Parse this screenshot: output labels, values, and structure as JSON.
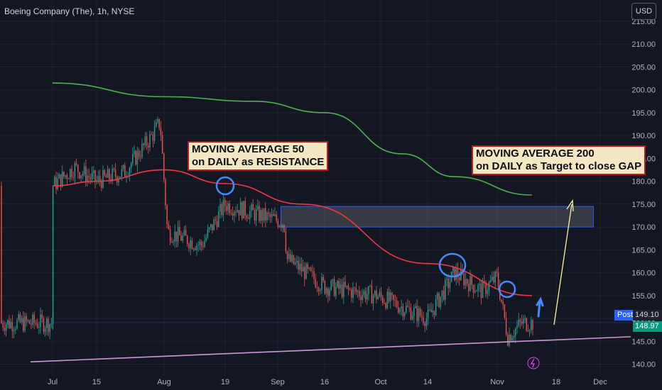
{
  "header": {
    "symbol_title": "Boeing Company (The), 1h, NYSE",
    "currency_button": "USD"
  },
  "annotations": {
    "ma50": {
      "line1": "MOVING AVERAGE 50",
      "line2": "on DAILY as RESISTANCE"
    },
    "ma200": {
      "line1": "MOVING AVERAGE 200",
      "line2": "on DAILY as Target to close GAP"
    }
  },
  "price_labels": {
    "post_tag": "Post",
    "post_price": "149.10",
    "last_price": "148.97"
  },
  "colors": {
    "background": "#131722",
    "up_candle": "#26a69a",
    "down_candle": "#ef5350",
    "ma50_line": "#f23645",
    "ma200_line": "#4caf50",
    "support_line": "#ce93d8",
    "circle": "#448aff",
    "arrow": "#fff59d",
    "gap_box_border": "#2962ff"
  },
  "chart_data": {
    "type": "candlestick",
    "interval": "1h",
    "y_axis": {
      "range": [
        139,
        215
      ],
      "ticks": [
        140,
        145,
        150,
        155,
        160,
        165,
        170,
        175,
        180,
        185,
        190,
        195,
        200,
        205,
        210,
        215
      ]
    },
    "x_axis": {
      "ticks": [
        "Jul",
        "15",
        "Aug",
        "19",
        "Sep",
        "16",
        "Oct",
        "14",
        "Nov",
        "18",
        "Dec"
      ]
    },
    "grid": true,
    "price_path": [
      [
        "Jul",
        179
      ],
      [
        "Jul 8",
        183
      ],
      [
        "Jul 15",
        180
      ],
      [
        "Jul 22",
        182
      ],
      [
        "Jul 29",
        190
      ],
      [
        "Jul 31",
        193
      ],
      [
        "Aug 2",
        169
      ],
      [
        "Aug 12",
        166
      ],
      [
        "Aug 19",
        175
      ],
      [
        "Aug 26",
        173
      ],
      [
        "Sep 3",
        171
      ],
      [
        "Sep 4",
        163
      ],
      [
        "Sep 16",
        157
      ],
      [
        "Sep 30",
        155
      ],
      [
        "Oct 14",
        150
      ],
      [
        "Oct 21",
        160
      ],
      [
        "Oct 28",
        156
      ],
      [
        "Nov 1",
        159
      ],
      [
        "Nov 4",
        146
      ],
      [
        "Nov 8",
        149
      ]
    ],
    "ma200_daily": [
      [
        "Jul",
        201.5
      ],
      [
        "Aug",
        198.5
      ],
      [
        "Aug 26",
        197.5
      ],
      [
        "Sep 16",
        195
      ],
      [
        "Oct 7",
        186
      ],
      [
        "Oct 21",
        181
      ],
      [
        "Nov 11",
        177
      ]
    ],
    "ma50_daily": [
      [
        "Jul",
        179
      ],
      [
        "Jul 15",
        180
      ],
      [
        "Aug",
        182.5
      ],
      [
        "Aug 19",
        179.5
      ],
      [
        "Sep 9",
        175
      ],
      [
        "Oct 14",
        162
      ],
      [
        "Nov 11",
        155
      ]
    ],
    "gap_zone": {
      "from": "Sep 2",
      "to": "Nov 29",
      "low": 170,
      "high": 174.5
    },
    "support_line": [
      [
        "Jun 24",
        140.5
      ],
      [
        "Dec 10",
        146
      ]
    ],
    "post_market": 149.1,
    "last": 148.97
  }
}
